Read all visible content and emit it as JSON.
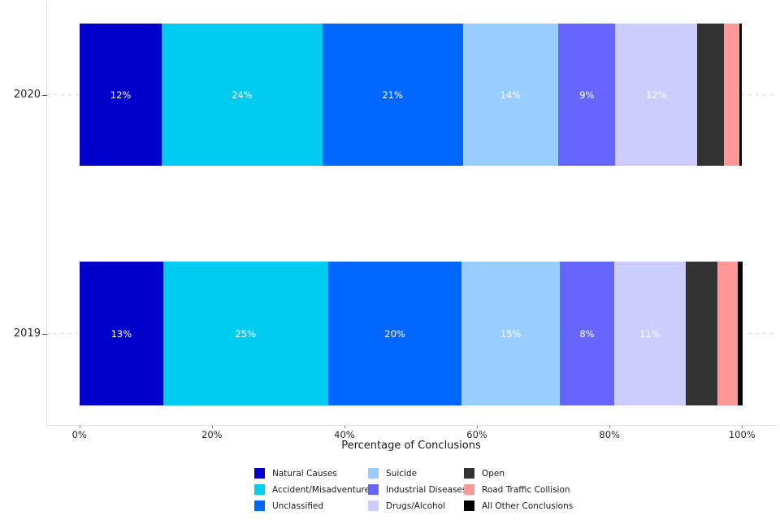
{
  "chart_data": {
    "type": "bar",
    "orientation": "horizontal-stacked",
    "title": "",
    "xlabel": "Percentage of Conclusions",
    "ylabel": "",
    "categories": [
      "2020",
      "2019"
    ],
    "x_ticks": [
      "0%",
      "20%",
      "40%",
      "60%",
      "80%",
      "100%"
    ],
    "xlim": [
      0,
      100
    ],
    "grid": "dashed horizontal gridline at each category",
    "legend_position": "bottom",
    "series": [
      {
        "name": "Natural Causes",
        "color": "#0000cc",
        "values": [
          12.4,
          12.6
        ],
        "labels": [
          "12%",
          "13%"
        ]
      },
      {
        "name": "Accident/Misadventure",
        "color": "#00ccf2",
        "values": [
          24.2,
          24.9
        ],
        "labels": [
          "24%",
          "25%"
        ]
      },
      {
        "name": "Unclassified",
        "color": "#0066ff",
        "values": [
          21.2,
          20.2
        ],
        "labels": [
          "21%",
          "20%"
        ]
      },
      {
        "name": "Suicide",
        "color": "#99ccff",
        "values": [
          14.4,
          14.8
        ],
        "labels": [
          "14%",
          "15%"
        ]
      },
      {
        "name": "Industrial Diseases",
        "color": "#6666ff",
        "values": [
          8.6,
          8.2
        ],
        "labels": [
          "9%",
          "8%"
        ]
      },
      {
        "name": "Drugs/Alcohol",
        "color": "#ccccff",
        "values": [
          12.4,
          10.8
        ],
        "labels": [
          "12%",
          "11%"
        ]
      },
      {
        "name": "Open",
        "color": "#333333",
        "values": [
          4.0,
          4.8
        ],
        "labels": [
          "",
          ""
        ]
      },
      {
        "name": "Road Traffic Collision",
        "color": "#ff9999",
        "values": [
          2.3,
          3.1
        ],
        "labels": [
          "",
          ""
        ]
      },
      {
        "name": "All Other Conclusions",
        "color": "#000000",
        "values": [
          0.4,
          0.7
        ],
        "labels": [
          "",
          ""
        ]
      }
    ],
    "bar_label_color": "#ffffff"
  }
}
